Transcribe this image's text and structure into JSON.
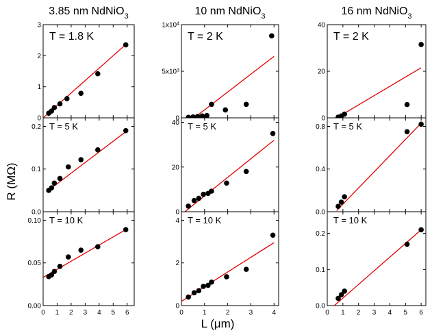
{
  "figure": {
    "ylabel": "R (MΩ)",
    "xlabel": "L (μm)",
    "fit_color": "#e00000",
    "point_color": "#000000"
  },
  "chart_data": [
    {
      "type": "scatter",
      "row": 0,
      "col": 0,
      "title": "3.85 nm NdNiO3",
      "annotation": "T = 1.8 K",
      "xlim": [
        0,
        6.5
      ],
      "ylim": [
        0,
        3
      ],
      "xticks": [
        0,
        1,
        2,
        3,
        4,
        5,
        6
      ],
      "yticks": [
        0,
        1,
        2,
        3
      ],
      "ytick_labels": [
        "0",
        "1",
        "2",
        "3"
      ],
      "show_xtick_labels": false,
      "x": [
        0.4,
        0.6,
        0.8,
        1.2,
        1.7,
        2.7,
        3.9,
        5.9
      ],
      "y": [
        0.15,
        0.22,
        0.33,
        0.45,
        0.62,
        0.79,
        1.42,
        2.35
      ],
      "fit": [
        [
          0,
          0.0
        ],
        [
          6,
          2.4
        ]
      ]
    },
    {
      "type": "scatter",
      "row": 0,
      "col": 1,
      "title": "10 nm NdNiO3",
      "annotation": "T = 2 K",
      "xlim": [
        0,
        4.2
      ],
      "ylim": [
        0,
        10000
      ],
      "xticks": [
        0,
        1,
        2,
        3,
        4
      ],
      "yticks": [
        0,
        5000,
        10000
      ],
      "ytick_labels": [
        "0",
        "5x10^3",
        "1x10^4"
      ],
      "show_xtick_labels": false,
      "x": [
        0.3,
        0.5,
        0.7,
        0.9,
        1.1,
        1.3,
        1.9,
        2.8,
        3.9
      ],
      "y": [
        50,
        100,
        150,
        200,
        250,
        1450,
        850,
        1450,
        8800
      ],
      "fit": [
        [
          0.55,
          0
        ],
        [
          4,
          6600
        ]
      ]
    },
    {
      "type": "scatter",
      "row": 0,
      "col": 2,
      "title": "16 nm NdNiO3",
      "annotation": "T = 2 K",
      "xlim": [
        0,
        6.3
      ],
      "ylim": [
        0,
        40
      ],
      "xticks": [
        0,
        1,
        2,
        3,
        4,
        5,
        6
      ],
      "yticks": [
        0,
        20,
        40
      ],
      "ytick_labels": [
        "0",
        "20",
        "40"
      ],
      "show_xtick_labels": false,
      "x": [
        0.7,
        0.9,
        1.1,
        5.1,
        6.0
      ],
      "y": [
        0.3,
        0.8,
        1.6,
        5.7,
        31.5
      ],
      "fit": [
        [
          0.6,
          0
        ],
        [
          6,
          21.5
        ]
      ]
    },
    {
      "type": "scatter",
      "row": 1,
      "col": 0,
      "title": "",
      "annotation": "T = 5 K",
      "xlim": [
        0,
        6.5
      ],
      "ylim": [
        0,
        0.22
      ],
      "xticks": [
        0,
        1,
        2,
        3,
        4,
        5,
        6
      ],
      "yticks": [
        0,
        0.1,
        0.2
      ],
      "ytick_labels": [
        "0.0",
        "0.1",
        "0.2"
      ],
      "show_xtick_labels": false,
      "x": [
        0.4,
        0.6,
        0.8,
        1.2,
        1.8,
        2.7,
        3.9,
        5.9
      ],
      "y": [
        0.05,
        0.056,
        0.067,
        0.078,
        0.105,
        0.122,
        0.145,
        0.19
      ],
      "fit": [
        [
          0.3,
          0.048
        ],
        [
          6,
          0.19
        ]
      ]
    },
    {
      "type": "scatter",
      "row": 1,
      "col": 1,
      "title": "",
      "annotation": "T = 5 K",
      "xlim": [
        0,
        4.2
      ],
      "ylim": [
        0,
        42
      ],
      "xticks": [
        0,
        1,
        2,
        3,
        4
      ],
      "yticks": [
        0,
        20,
        40
      ],
      "ytick_labels": [
        "0",
        "20",
        "40"
      ],
      "show_xtick_labels": false,
      "x": [
        0.3,
        0.55,
        0.75,
        0.95,
        1.15,
        1.3,
        1.95,
        2.8,
        3.95
      ],
      "y": [
        2.5,
        5.0,
        6.0,
        7.8,
        8.2,
        9.2,
        12.8,
        18.0,
        35.0
      ],
      "fit": [
        [
          0.15,
          0
        ],
        [
          4,
          32
        ]
      ]
    },
    {
      "type": "scatter",
      "row": 1,
      "col": 2,
      "title": "",
      "annotation": "T = 5 K",
      "xlim": [
        0,
        6.3
      ],
      "ylim": [
        0,
        0.88
      ],
      "xticks": [
        0,
        1,
        2,
        3,
        4,
        5,
        6
      ],
      "yticks": [
        0,
        0.4,
        0.8
      ],
      "ytick_labels": [
        "0.0",
        "0.4",
        "0.8"
      ],
      "show_xtick_labels": false,
      "x": [
        0.7,
        0.9,
        1.1,
        5.1,
        6.0
      ],
      "y": [
        0.05,
        0.09,
        0.14,
        0.75,
        0.82
      ],
      "fit": [
        [
          0.6,
          0.01
        ],
        [
          6,
          0.83
        ]
      ]
    },
    {
      "type": "scatter",
      "row": 2,
      "col": 0,
      "title": "",
      "annotation": "T = 10 K",
      "xlim": [
        0,
        6.5
      ],
      "ylim": [
        0,
        0.11
      ],
      "xticks": [
        0,
        1,
        2,
        3,
        4,
        5,
        6
      ],
      "yticks": [
        0,
        0.05,
        0.1
      ],
      "ytick_labels": [
        "0.00",
        "0.05",
        "0.10"
      ],
      "show_xtick_labels": true,
      "x": [
        0.4,
        0.6,
        0.8,
        1.2,
        1.8,
        2.7,
        3.9,
        5.9
      ],
      "y": [
        0.034,
        0.036,
        0.04,
        0.046,
        0.057,
        0.065,
        0.069,
        0.089
      ],
      "fit": [
        [
          0,
          0.033
        ],
        [
          6,
          0.09
        ]
      ]
    },
    {
      "type": "scatter",
      "row": 2,
      "col": 1,
      "title": "",
      "annotation": "T = 10 K",
      "xlim": [
        0,
        4.2
      ],
      "ylim": [
        0,
        4.4
      ],
      "xticks": [
        0,
        1,
        2,
        3,
        4
      ],
      "yticks": [
        0,
        2,
        4
      ],
      "ytick_labels": [
        "0",
        "2",
        "4"
      ],
      "show_xtick_labels": true,
      "x": [
        0.3,
        0.55,
        0.75,
        0.95,
        1.15,
        1.3,
        1.95,
        2.8,
        3.95
      ],
      "y": [
        0.4,
        0.6,
        0.7,
        0.9,
        0.95,
        1.1,
        1.35,
        1.7,
        3.3
      ],
      "fit": [
        [
          0,
          0.2
        ],
        [
          4,
          2.95
        ]
      ]
    },
    {
      "type": "scatter",
      "row": 2,
      "col": 2,
      "title": "",
      "annotation": "T = 10 K",
      "xlim": [
        0,
        6.3
      ],
      "ylim": [
        0,
        0.26
      ],
      "xticks": [
        0,
        1,
        2,
        3,
        4,
        5,
        6
      ],
      "yticks": [
        0,
        0.1,
        0.2
      ],
      "ytick_labels": [
        "0.0",
        "0.1",
        "0.2"
      ],
      "show_xtick_labels": true,
      "x": [
        0.7,
        0.9,
        1.1,
        5.1,
        6.0
      ],
      "y": [
        0.02,
        0.03,
        0.04,
        0.17,
        0.21
      ],
      "fit": [
        [
          0.45,
          0
        ],
        [
          6,
          0.21
        ]
      ]
    }
  ]
}
